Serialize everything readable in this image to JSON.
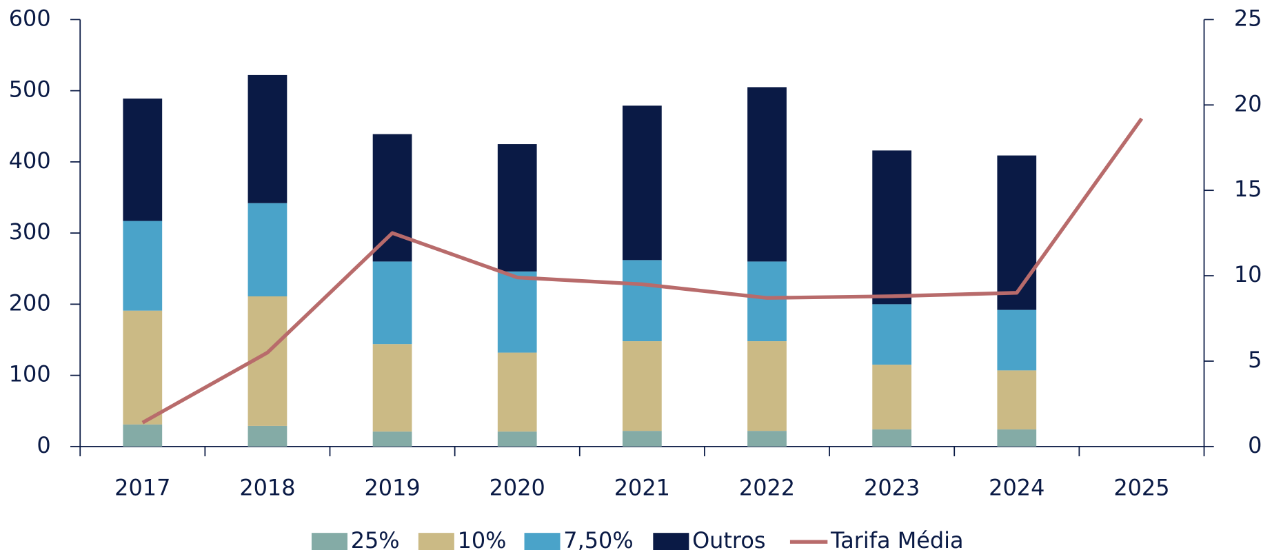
{
  "chart_data": {
    "type": "bar",
    "categories": [
      "2017",
      "2018",
      "2019",
      "2020",
      "2021",
      "2022",
      "2023",
      "2024",
      "2025"
    ],
    "stacked": true,
    "series": [
      {
        "name": "25%",
        "color": "#84aba6",
        "values": [
          31,
          29,
          21,
          21,
          22,
          22,
          24,
          24,
          null
        ]
      },
      {
        "name": "10%",
        "color": "#cbba85",
        "values": [
          160,
          182,
          123,
          111,
          126,
          126,
          91,
          83,
          null
        ]
      },
      {
        "name": "7,50%",
        "color": "#4aa3c9",
        "values": [
          126,
          131,
          116,
          114,
          114,
          112,
          85,
          85,
          null
        ]
      },
      {
        "name": "Outros",
        "color": "#0a1a45",
        "values": [
          172,
          180,
          179,
          179,
          217,
          245,
          216,
          217,
          null
        ]
      },
      {
        "name": "Tarifa Média",
        "color": "#b86b6b",
        "type": "line",
        "axis": "y2",
        "values": [
          1.4,
          5.5,
          12.5,
          9.9,
          9.5,
          8.7,
          8.8,
          9.0,
          19.2
        ]
      }
    ],
    "ylim": [
      0,
      600
    ],
    "yticks": [
      0,
      100,
      200,
      300,
      400,
      500,
      600
    ],
    "y2lim": [
      0,
      25
    ],
    "y2ticks": [
      0,
      5,
      10,
      15,
      20,
      25
    ],
    "legend": "bottom"
  }
}
